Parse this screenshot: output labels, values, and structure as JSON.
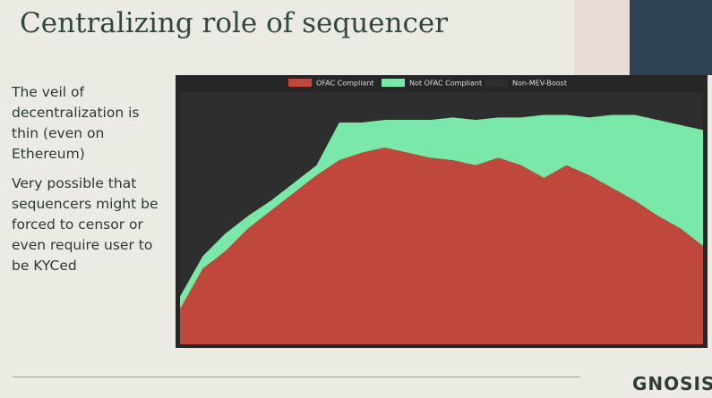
{
  "slide": {
    "title": "Centralizing role of sequencer",
    "paragraphs": [
      "The veil of decentralization is thin (even on Ethereum)",
      "Very possible that sequencers might be forced to censor or even require user to be KYCed"
    ],
    "logo": "GNOSIS"
  },
  "chart_data": {
    "type": "stacked-area",
    "categories": [
      null,
      null,
      null,
      null,
      null,
      null,
      null,
      null,
      null,
      null,
      null,
      null,
      null,
      null,
      null,
      null,
      null,
      null,
      null,
      null,
      null,
      null,
      null,
      null
    ],
    "ylim": [
      0,
      100
    ],
    "series": [
      {
        "name": "OFAC Compliant",
        "color": "#c0473c",
        "values": [
          14,
          30,
          37,
          46,
          53,
          60,
          67,
          73,
          76,
          78,
          76,
          74,
          73,
          71,
          74,
          71,
          66,
          71,
          67,
          62,
          57,
          51,
          46,
          39
        ]
      },
      {
        "name": "Not OFAC Compliant",
        "color": "#7ae8a8",
        "values": [
          5,
          5,
          7,
          5,
          4,
          4,
          4,
          15,
          12,
          11,
          13,
          15,
          17,
          18,
          16,
          19,
          25,
          20,
          23,
          29,
          34,
          38,
          41,
          46
        ]
      },
      {
        "name": "Non-MEV-Boost",
        "color": "#2e2e2e",
        "values": [
          81,
          65,
          56,
          49,
          43,
          36,
          29,
          12,
          12,
          11,
          11,
          11,
          10,
          11,
          10,
          10,
          9,
          9,
          10,
          9,
          9,
          11,
          13,
          15
        ]
      }
    ]
  }
}
